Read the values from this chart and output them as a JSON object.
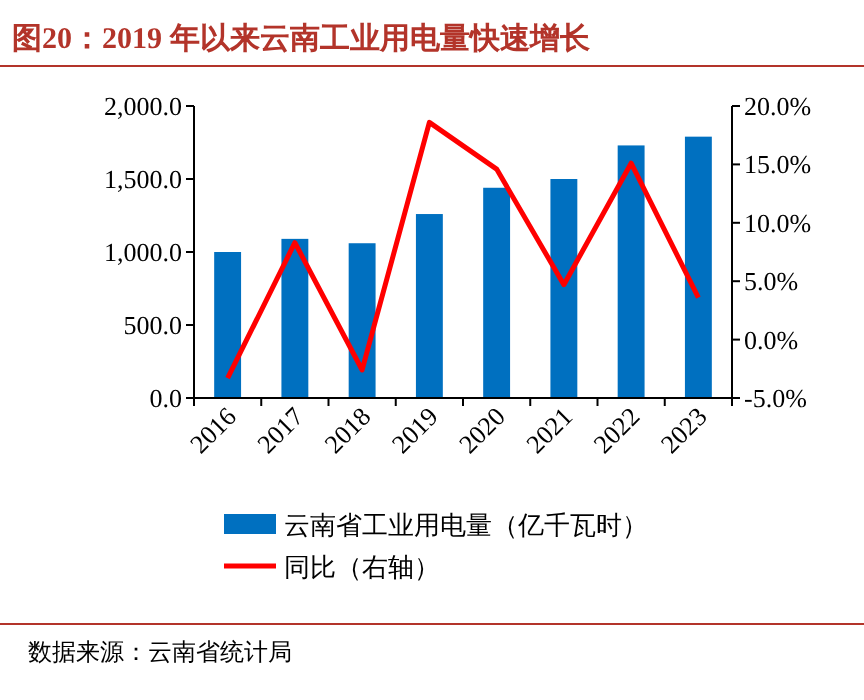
{
  "chart_data": {
    "type": "bar",
    "title": "图20：2019 年以来云南工业用电量快速增长",
    "categories": [
      "2016",
      "2017",
      "2018",
      "2019",
      "2020",
      "2021",
      "2022",
      "2023"
    ],
    "series": [
      {
        "name": "云南省工业用电量（亿千瓦时）",
        "color": "#0070c0",
        "values": [
          1000,
          1090,
          1060,
          1260,
          1440,
          1500,
          1730,
          1790
        ]
      },
      {
        "name": "同比（右轴）",
        "type": "line",
        "axis": "y2",
        "color": "#ff0000",
        "values": [
          -3.3,
          8.3,
          -2.6,
          18.6,
          14.6,
          4.7,
          15.1,
          3.6
        ]
      }
    ],
    "ylim": [
      0,
      2000
    ],
    "yticks": [
      {
        "value": 0,
        "label": "0.0"
      },
      {
        "value": 500,
        "label": "500.0"
      },
      {
        "value": 1000,
        "label": "1,000.0"
      },
      {
        "value": 1500,
        "label": "1,500.0"
      },
      {
        "value": 2000,
        "label": "2,000.0"
      }
    ],
    "y2lim": [
      -5,
      20
    ],
    "y2ticks": [
      {
        "value": -5,
        "label": "-5.0%"
      },
      {
        "value": 0,
        "label": "0.0%"
      },
      {
        "value": 5,
        "label": "5.0%"
      },
      {
        "value": 10,
        "label": "10.0%"
      },
      {
        "value": 15,
        "label": "15.0%"
      },
      {
        "value": 20,
        "label": "20.0%"
      }
    ],
    "legend": "bottom",
    "grid": false,
    "marker": "none",
    "annotations": [
      "数据来源：云南省统计局"
    ]
  }
}
